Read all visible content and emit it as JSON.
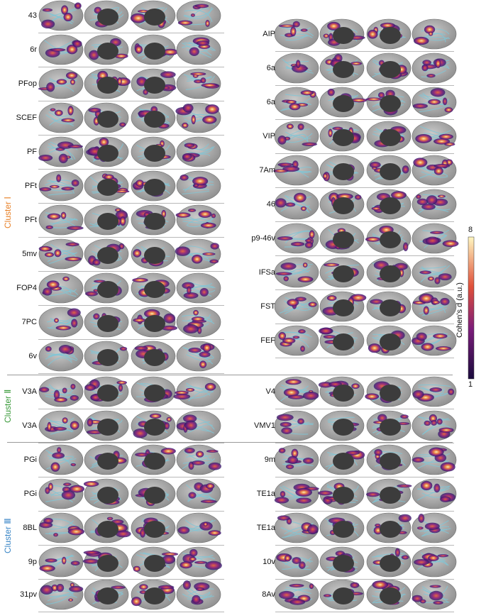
{
  "clusters": {
    "c1": {
      "name": "Cluster Ⅰ",
      "color": "#e8822a"
    },
    "c2": {
      "name": "Cluster Ⅱ",
      "color": "#3a9a3a"
    },
    "c3": {
      "name": "Cluster Ⅲ",
      "color": "#3a86c6"
    }
  },
  "left_rows": [
    "43",
    "6r",
    "PFop",
    "SCEF",
    "PF",
    "PFt",
    "PFt",
    "5mv",
    "FOP4",
    "7PC",
    "6v",
    "V3A",
    "V3A",
    "PGi",
    "PGi",
    "8BL",
    "9p",
    "31pv"
  ],
  "right_rows": [
    "AIP",
    "6a",
    "6a",
    "VIP",
    "7Am",
    "46",
    "p9-46v",
    "IFSa",
    "FST",
    "FEF",
    "V4",
    "VMV1",
    "9m",
    "TE1a",
    "TE1a",
    "10v",
    "8Av"
  ],
  "colorbar": {
    "title": "Cohen's d (a.u.)",
    "max_label": "8",
    "min_label": "1"
  }
}
